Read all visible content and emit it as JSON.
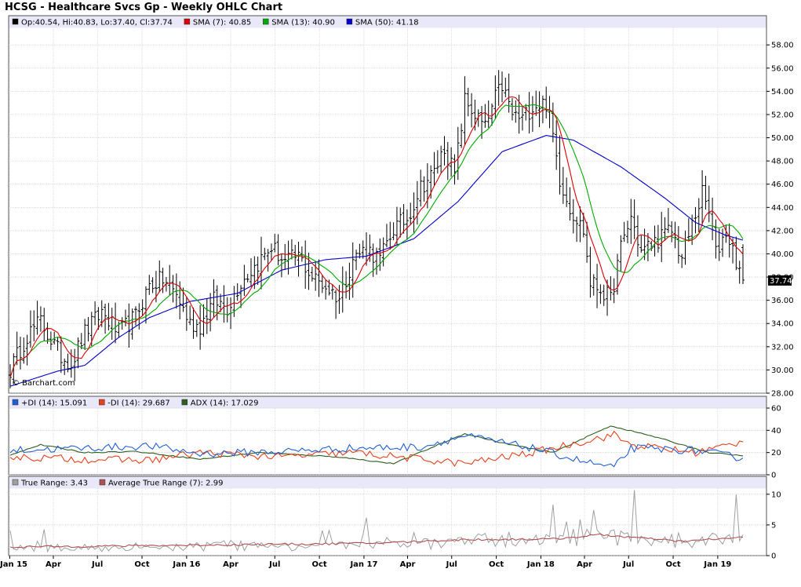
{
  "title": "HCSG - Healthcare Svcs Gp - Weekly OHLC Chart",
  "watermark": "© Barchart.com",
  "colors": {
    "legend_bg": "#e8e8f8",
    "grid": "#c8c8c8",
    "price_bar": "#000000",
    "sma7": "#dd0000",
    "sma13": "#00aa00",
    "sma50": "#0000cc",
    "plus_di": "#1f5fd6",
    "minus_di": "#e8411a",
    "adx": "#2e5e1e",
    "true_range": "#a0a0a0",
    "atr": "#b05050"
  },
  "x_axis": {
    "labels": [
      "Jan 15",
      "Apr",
      "Jul",
      "Oct",
      "Jan 16",
      "Apr",
      "Jul",
      "Oct",
      "Jan 17",
      "Apr",
      "Jul",
      "Oct",
      "Jan 18",
      "Apr",
      "Jul",
      "Oct",
      "Jan 19"
    ]
  },
  "chart_data": [
    {
      "type": "ohlc",
      "name": "price",
      "legend": [
        {
          "label": "Op:40.54, Hi:40.83, Lo:37.40, Cl:37.74",
          "color": "#000000"
        },
        {
          "label": "SMA (7): 40.85",
          "color": "#dd0000"
        },
        {
          "label": "SMA (13): 40.90",
          "color": "#00aa00"
        },
        {
          "label": "SMA (50): 41.18",
          "color": "#0000cc"
        }
      ],
      "y_ticks": [
        "58.00",
        "56.00",
        "54.00",
        "52.00",
        "50.00",
        "48.00",
        "46.00",
        "44.00",
        "42.00",
        "40.00",
        "38.00",
        "36.00",
        "34.00",
        "32.00",
        "30.00",
        "28.00"
      ],
      "ylim": [
        28,
        59.5
      ],
      "last_value": "37.74",
      "close_anchors": [
        [
          "2015-01-02",
          30.0
        ],
        [
          "2015-02-06",
          33.0
        ],
        [
          "2015-03-06",
          34.2
        ],
        [
          "2015-03-27",
          32.6
        ],
        [
          "2015-04-17",
          31.2
        ],
        [
          "2015-05-08",
          30.6
        ],
        [
          "2015-06-05",
          33.2
        ],
        [
          "2015-07-10",
          35.0
        ],
        [
          "2015-08-14",
          33.2
        ],
        [
          "2015-09-18",
          34.6
        ],
        [
          "2015-10-16",
          37.3
        ],
        [
          "2015-11-13",
          37.8
        ],
        [
          "2015-12-11",
          36.5
        ],
        [
          "2016-01-08",
          34.0
        ],
        [
          "2016-01-29",
          33.8
        ],
        [
          "2016-02-26",
          36.0
        ],
        [
          "2016-03-25",
          35.4
        ],
        [
          "2016-04-22",
          37.6
        ],
        [
          "2016-05-27",
          39.2
        ],
        [
          "2016-06-24",
          40.6
        ],
        [
          "2016-07-22",
          39.3
        ],
        [
          "2016-08-19",
          39.8
        ],
        [
          "2016-09-16",
          38.0
        ],
        [
          "2016-10-14",
          37.2
        ],
        [
          "2016-11-11",
          36.2
        ],
        [
          "2016-12-09",
          39.6
        ],
        [
          "2017-01-06",
          40.5
        ],
        [
          "2017-02-03",
          39.5
        ],
        [
          "2017-03-03",
          42.2
        ],
        [
          "2017-03-31",
          43.0
        ],
        [
          "2017-04-28",
          45.8
        ],
        [
          "2017-05-26",
          47.0
        ],
        [
          "2017-06-16",
          49.2
        ],
        [
          "2017-07-07",
          46.8
        ],
        [
          "2017-07-28",
          53.2
        ],
        [
          "2017-08-18",
          52.0
        ],
        [
          "2017-09-08",
          50.8
        ],
        [
          "2017-09-29",
          53.4
        ],
        [
          "2017-10-13",
          54.5
        ],
        [
          "2017-11-03",
          52.0
        ],
        [
          "2017-11-24",
          51.6
        ],
        [
          "2017-12-15",
          52.8
        ],
        [
          "2018-01-12",
          53.0
        ],
        [
          "2018-01-26",
          50.2
        ],
        [
          "2018-02-09",
          46.5
        ],
        [
          "2018-03-02",
          44.0
        ],
        [
          "2018-03-30",
          42.0
        ],
        [
          "2018-04-13",
          37.5
        ],
        [
          "2018-05-04",
          37.0
        ],
        [
          "2018-05-25",
          36.0
        ],
        [
          "2018-06-15",
          40.5
        ],
        [
          "2018-07-06",
          43.2
        ],
        [
          "2018-07-27",
          40.2
        ],
        [
          "2018-08-17",
          40.8
        ],
        [
          "2018-09-07",
          41.5
        ],
        [
          "2018-09-28",
          42.0
        ],
        [
          "2018-10-19",
          39.6
        ],
        [
          "2018-11-09",
          42.5
        ],
        [
          "2018-11-30",
          45.2
        ],
        [
          "2018-12-14",
          43.5
        ],
        [
          "2018-12-28",
          40.0
        ],
        [
          "2019-01-18",
          42.0
        ],
        [
          "2019-02-08",
          39.5
        ],
        [
          "2019-02-22",
          37.74
        ]
      ],
      "sma50_anchors": [
        [
          "2015-01-02",
          28.6
        ],
        [
          "2015-04-10",
          29.9
        ],
        [
          "2015-06-05",
          30.4
        ],
        [
          "2015-08-14",
          32.8
        ],
        [
          "2015-10-16",
          34.5
        ],
        [
          "2016-01-08",
          35.9
        ],
        [
          "2016-04-15",
          36.6
        ],
        [
          "2016-07-15",
          38.6
        ],
        [
          "2016-10-14",
          39.5
        ],
        [
          "2017-01-06",
          39.8
        ],
        [
          "2017-04-14",
          41.3
        ],
        [
          "2017-07-14",
          44.5
        ],
        [
          "2017-10-13",
          48.8
        ],
        [
          "2018-01-12",
          50.2
        ],
        [
          "2018-03-09",
          49.8
        ],
        [
          "2018-06-15",
          47.5
        ],
        [
          "2018-09-14",
          44.8
        ],
        [
          "2018-11-16",
          42.7
        ],
        [
          "2019-01-18",
          41.6
        ],
        [
          "2019-02-22",
          41.18
        ]
      ]
    },
    {
      "type": "line",
      "name": "dmi",
      "legend": [
        {
          "label": "+DI (14): 15.091",
          "color": "#1f5fd6"
        },
        {
          "label": "-DI (14): 29.687",
          "color": "#e8411a"
        },
        {
          "label": "ADX (14): 17.029",
          "color": "#2e5e1e"
        }
      ],
      "y_ticks": [
        "60",
        "40",
        "20",
        "0"
      ],
      "ylim": [
        0,
        60
      ],
      "plus_di_anchors": [
        [
          "2015-01-02",
          22
        ],
        [
          "2015-06-05",
          24
        ],
        [
          "2015-10-16",
          26
        ],
        [
          "2016-01-29",
          19
        ],
        [
          "2016-07-15",
          21
        ],
        [
          "2016-12-09",
          24
        ],
        [
          "2017-04-28",
          25
        ],
        [
          "2017-07-28",
          35
        ],
        [
          "2017-12-15",
          24
        ],
        [
          "2018-03-30",
          12
        ],
        [
          "2018-06-01",
          6
        ],
        [
          "2018-07-06",
          24
        ],
        [
          "2018-11-16",
          22
        ],
        [
          "2019-02-22",
          15.091
        ]
      ],
      "minus_di_anchors": [
        [
          "2015-01-02",
          16
        ],
        [
          "2015-06-05",
          14
        ],
        [
          "2015-10-16",
          13
        ],
        [
          "2016-01-29",
          20
        ],
        [
          "2016-07-15",
          16
        ],
        [
          "2016-12-09",
          20
        ],
        [
          "2017-04-28",
          14
        ],
        [
          "2017-07-28",
          10
        ],
        [
          "2017-12-15",
          20
        ],
        [
          "2018-03-30",
          30
        ],
        [
          "2018-06-01",
          36
        ],
        [
          "2018-07-06",
          27
        ],
        [
          "2018-11-16",
          20
        ],
        [
          "2019-02-22",
          29.687
        ]
      ],
      "adx_anchors": [
        [
          "2015-01-02",
          18
        ],
        [
          "2015-03-06",
          27
        ],
        [
          "2015-06-05",
          20
        ],
        [
          "2015-09-18",
          21
        ],
        [
          "2016-01-29",
          14
        ],
        [
          "2016-05-27",
          20
        ],
        [
          "2016-11-11",
          16
        ],
        [
          "2017-03-03",
          10
        ],
        [
          "2017-07-28",
          37
        ],
        [
          "2017-10-20",
          28
        ],
        [
          "2018-01-26",
          20
        ],
        [
          "2018-05-25",
          44
        ],
        [
          "2018-08-17",
          35
        ],
        [
          "2018-12-14",
          20
        ],
        [
          "2019-02-22",
          17.029
        ]
      ]
    },
    {
      "type": "line",
      "name": "true-range",
      "legend": [
        {
          "label": "True Range: 3.43",
          "color": "#a0a0a0"
        },
        {
          "label": "Average True Range (7): 2.99",
          "color": "#b05050"
        }
      ],
      "y_ticks": [
        "10",
        "5",
        "0"
      ],
      "ylim": [
        0,
        11
      ],
      "tr_anchors": [
        [
          "2015-01-02",
          1.3
        ],
        [
          "2016-01-08",
          1.6
        ],
        [
          "2017-01-06",
          1.8
        ],
        [
          "2017-07-28",
          2.6
        ],
        [
          "2018-01-26",
          3.2
        ],
        [
          "2018-06-01",
          3.4
        ],
        [
          "2018-11-16",
          2.4
        ],
        [
          "2019-02-22",
          3.43
        ]
      ],
      "atr_anchors": [
        [
          "2015-01-02",
          1.4
        ],
        [
          "2016-01-08",
          1.7
        ],
        [
          "2017-01-06",
          2.0
        ],
        [
          "2017-07-28",
          2.6
        ],
        [
          "2018-01-26",
          2.7
        ],
        [
          "2018-05-04",
          3.4
        ],
        [
          "2018-10-19",
          2.3
        ],
        [
          "2019-02-22",
          2.99
        ]
      ]
    }
  ]
}
